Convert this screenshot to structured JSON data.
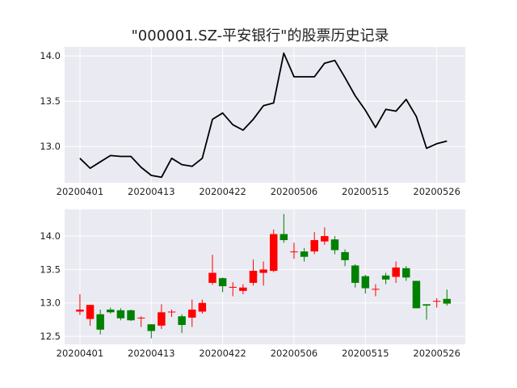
{
  "chart_data": {
    "title": "\"000001.SZ-平安银行\"的股票历史记录",
    "x_tick_labels": [
      "20200401",
      "20200413",
      "20200422",
      "20200506",
      "20200515",
      "20200526"
    ],
    "x_tick_index": [
      0,
      7,
      14,
      21,
      28,
      35
    ],
    "dates_count": 37,
    "colors": {
      "up": "#ff0000",
      "down": "#008000",
      "line": "#000000",
      "panel": "#eaeaf2",
      "grid": "#ffffff"
    },
    "panels": [
      {
        "type": "line",
        "ylim": [
          12.6,
          14.1
        ],
        "y_ticks": [
          13.0,
          13.5,
          14.0
        ],
        "y_tick_labels": [
          "13.0",
          "13.5",
          "14.0"
        ],
        "close": [
          12.87,
          12.76,
          12.83,
          12.9,
          12.89,
          12.89,
          12.77,
          12.68,
          12.66,
          12.87,
          12.8,
          12.78,
          12.87,
          13.3,
          13.37,
          13.24,
          13.18,
          13.3,
          13.45,
          13.48,
          14.03,
          13.77,
          13.77,
          13.77,
          13.92,
          13.95,
          13.76,
          13.56,
          13.4,
          13.21,
          13.41,
          13.39,
          13.52,
          13.33,
          12.98,
          13.03,
          13.06
        ]
      },
      {
        "type": "candlestick",
        "ylim": [
          12.38,
          14.4
        ],
        "y_ticks": [
          12.5,
          13.0,
          13.5,
          14.0
        ],
        "y_tick_labels": [
          "12.5",
          "13.0",
          "13.5",
          "14.0"
        ],
        "open": [
          12.87,
          12.76,
          12.83,
          12.9,
          12.89,
          12.89,
          12.77,
          12.68,
          12.66,
          12.87,
          12.8,
          12.78,
          12.87,
          13.3,
          13.37,
          13.24,
          13.18,
          13.3,
          13.45,
          13.48,
          14.03,
          13.77,
          13.77,
          13.77,
          13.92,
          13.95,
          13.76,
          13.56,
          13.4,
          13.21,
          13.41,
          13.39,
          13.52,
          13.33,
          12.98,
          13.03,
          13.06
        ],
        "close": [
          12.9,
          12.97,
          12.6,
          12.86,
          12.77,
          12.74,
          12.78,
          12.58,
          12.86,
          12.87,
          12.67,
          12.9,
          13.0,
          13.45,
          13.25,
          13.24,
          13.23,
          13.48,
          13.5,
          14.03,
          13.94,
          13.77,
          13.69,
          13.94,
          14.0,
          13.79,
          13.64,
          13.3,
          13.22,
          13.21,
          13.35,
          13.53,
          13.38,
          12.92,
          12.96,
          13.03,
          12.99
        ],
        "high": [
          13.13,
          12.97,
          12.9,
          12.93,
          12.92,
          12.9,
          12.8,
          12.68,
          12.98,
          12.9,
          12.83,
          13.05,
          13.05,
          13.72,
          13.38,
          13.31,
          13.28,
          13.65,
          13.62,
          14.1,
          14.33,
          13.9,
          13.82,
          14.06,
          14.13,
          14.0,
          13.8,
          13.58,
          13.42,
          13.28,
          13.45,
          13.62,
          13.55,
          13.33,
          12.98,
          13.07,
          13.2
        ],
        "low": [
          12.82,
          12.66,
          12.53,
          12.84,
          12.74,
          12.73,
          12.64,
          12.47,
          12.61,
          12.79,
          12.55,
          12.64,
          12.84,
          13.27,
          13.16,
          13.1,
          13.13,
          13.26,
          13.26,
          13.46,
          13.9,
          13.66,
          13.62,
          13.73,
          13.87,
          13.73,
          13.55,
          13.23,
          13.14,
          13.1,
          13.28,
          13.3,
          13.33,
          12.92,
          12.75,
          12.93,
          12.96
        ]
      }
    ]
  }
}
